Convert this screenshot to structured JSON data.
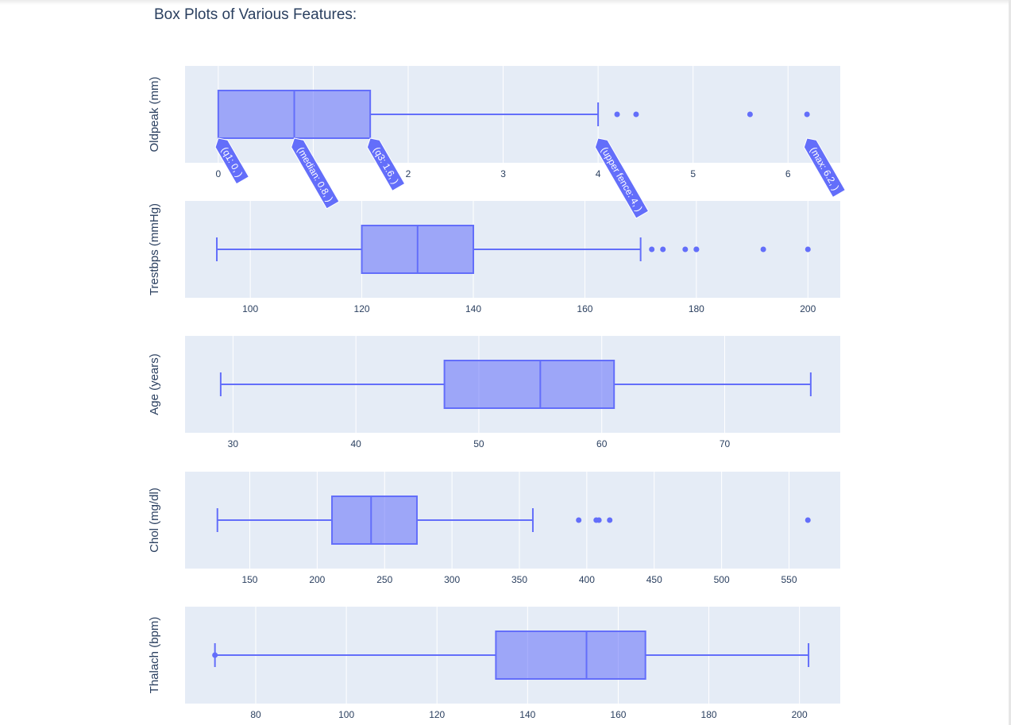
{
  "page_title": "Box Plots of Various Features:",
  "colors": {
    "box_line": "#636efa",
    "box_fill": "rgba(99,110,250,0.55)",
    "plot_bg": "#e5ecf6",
    "grid": "#ffffff",
    "text": "#2a3f5f",
    "annotation_bg": "#636efa"
  },
  "chart_data": [
    {
      "type": "box",
      "ylabel": "Oldpeak (mm)",
      "xlim": [
        -0.35,
        6.55
      ],
      "ticks": [
        0,
        1,
        2,
        3,
        4,
        5,
        6
      ],
      "stats": {
        "min": 0,
        "q1": 0,
        "median": 0.8,
        "q3": 1.6,
        "upper_fence": 4,
        "max": 6.2
      },
      "outliers": [
        4.2,
        4.4,
        5.6,
        6.2
      ],
      "annotations": [
        {
          "text": "(q1: 0, )",
          "x": 0
        },
        {
          "text": "(median: 0.8, )",
          "x": 0.8
        },
        {
          "text": "(q3: 1.6, )",
          "x": 1.6
        },
        {
          "text": "(upper fence: 4, )",
          "x": 4
        },
        {
          "text": "(max: 6.2, )",
          "x": 6.2
        }
      ]
    },
    {
      "type": "box",
      "ylabel": "Trestbps (mmHg)",
      "xlim": [
        88.3,
        205.8
      ],
      "ticks": [
        100,
        120,
        140,
        160,
        180,
        200
      ],
      "stats": {
        "min": 94,
        "q1": 120,
        "median": 130,
        "q3": 140,
        "upper_fence": 170,
        "max": 200
      },
      "outliers": [
        172,
        174,
        178,
        180,
        180,
        192,
        200
      ],
      "annotations": []
    },
    {
      "type": "box",
      "ylabel": "Age (years)",
      "xlim": [
        26.1,
        79.4
      ],
      "ticks": [
        30,
        40,
        50,
        60,
        70
      ],
      "stats": {
        "min": 29,
        "q1": 47.2,
        "median": 55,
        "q3": 61,
        "upper_fence": 77,
        "max": 77
      },
      "outliers": [],
      "annotations": []
    },
    {
      "type": "box",
      "ylabel": "Chol (mg/dl)",
      "xlim": [
        102,
        588
      ],
      "ticks": [
        150,
        200,
        250,
        300,
        350,
        400,
        450,
        500,
        550
      ],
      "stats": {
        "min": 126,
        "q1": 211,
        "median": 240,
        "q3": 274,
        "upper_fence": 360,
        "max": 564
      },
      "outliers": [
        394,
        407,
        409,
        417,
        564
      ],
      "annotations": []
    },
    {
      "type": "box",
      "ylabel": "Thalach (bpm)",
      "xlim": [
        64.4,
        209
      ],
      "ticks": [
        80,
        100,
        120,
        140,
        160,
        180,
        200
      ],
      "stats": {
        "min": 71,
        "q1": 133,
        "median": 153,
        "q3": 166,
        "upper_fence": 202,
        "max": 202
      },
      "outliers": [
        71
      ],
      "annotations": []
    }
  ]
}
